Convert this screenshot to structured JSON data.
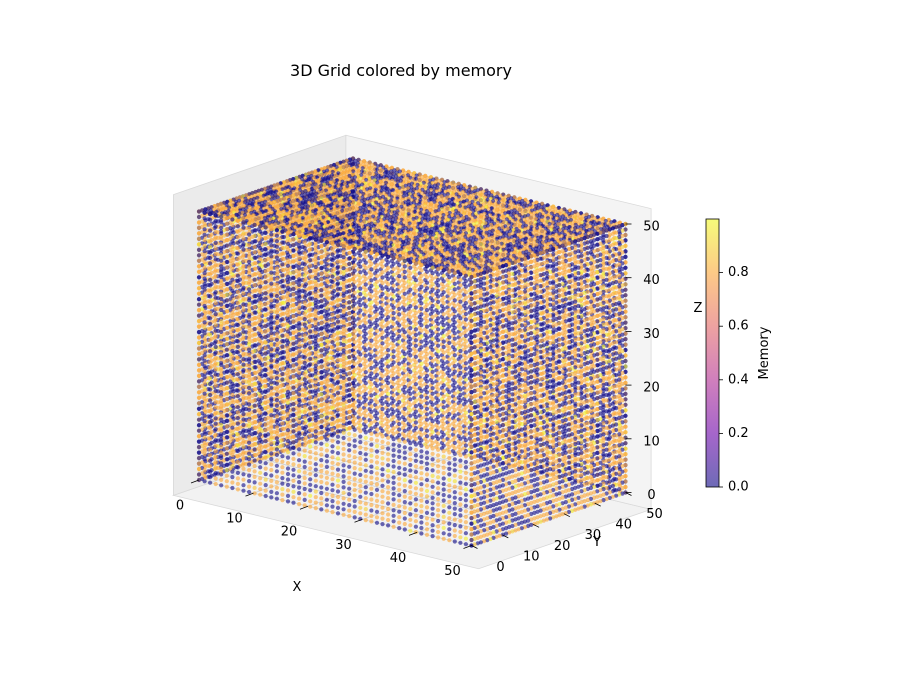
{
  "chart_data": {
    "type": "scatter",
    "projection": "3d",
    "title": "3D Grid colored by memory",
    "xlabel": "X",
    "ylabel": "Y",
    "zlabel": "Z",
    "xlim": [
      0,
      50
    ],
    "ylim": [
      0,
      50
    ],
    "zlim": [
      0,
      50
    ],
    "xticks": [
      0,
      10,
      20,
      30,
      40,
      50
    ],
    "yticks": [
      0,
      10,
      20,
      30,
      40,
      50
    ],
    "zticks": [
      0,
      10,
      20,
      30,
      40,
      50
    ],
    "grid_points_per_axis": 50,
    "value_range": [
      0,
      1
    ],
    "dominant_values": [
      0.0,
      0.8
    ],
    "colormap": "plasma",
    "colormap_stops": [
      "#0d0887",
      "#6a00a8",
      "#b12a90",
      "#e16462",
      "#fca636",
      "#f0f921"
    ],
    "alpha": 0.6,
    "grid": true,
    "colorbar": {
      "label": "Memory",
      "ticks": [
        "0.0",
        "0.2",
        "0.4",
        "0.6",
        "0.8"
      ],
      "tick_values": [
        0.0,
        0.2,
        0.4,
        0.6,
        0.8
      ],
      "range": [
        0,
        1
      ],
      "placement": "right"
    }
  }
}
